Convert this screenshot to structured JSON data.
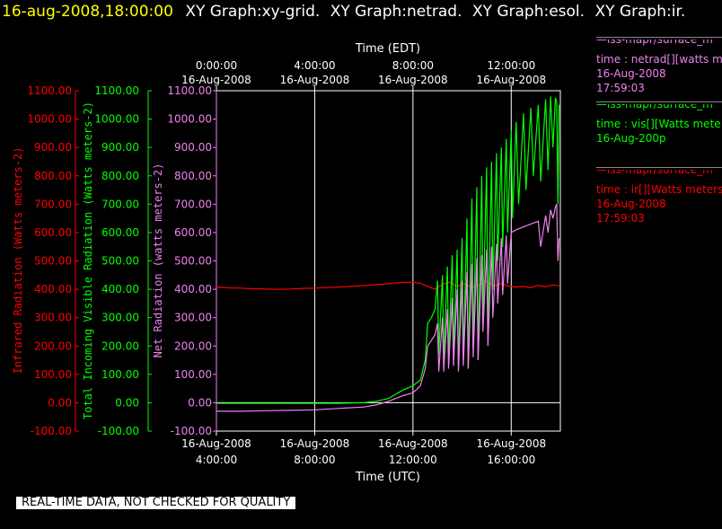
{
  "header": {
    "timestamp": "16-aug-2008,18:00:00",
    "tabs": [
      "XY Graph:xy-grid.",
      "XY Graph:netrad.",
      "XY Graph:esol.",
      "XY Graph:ir."
    ]
  },
  "footer": {
    "notice": "REAL-TIME DATA, NOT CHECKED FOR QUALITY"
  },
  "legend": [
    {
      "line1": "—iss-mapr/surface_m",
      "line2": "time : netrad[][watts m",
      "line3": "16-Aug-2008",
      "line4": "17:59:03",
      "color": "#ee82ee"
    },
    {
      "line1": "—iss-mapr/surface_m",
      "line2": "time : vis[][Watts mete",
      "line3": "16-Aug-200p",
      "line4": "",
      "color": "#00ff00"
    },
    {
      "line1": "—iss-mapr/surface_m",
      "line2": "time : ir[][Watts meters",
      "line3": "16-Aug-2008",
      "line4": "17:59:03",
      "color": "#ff0000"
    }
  ],
  "chart_data": {
    "type": "line",
    "x_unit": "hours UTC, 16-Aug-2008",
    "xlim": [
      4.0,
      18.0
    ],
    "ylim": [
      -100,
      1100
    ],
    "grid": true,
    "top_axis": {
      "label": "Time (EDT)",
      "ticks": [
        {
          "x": 4,
          "line1": "0:00:00",
          "line2": "16-Aug-2008"
        },
        {
          "x": 8,
          "line1": "4:00:00",
          "line2": "16-Aug-2008"
        },
        {
          "x": 12,
          "line1": "8:00:00",
          "line2": "16-Aug-2008"
        },
        {
          "x": 16,
          "line1": "12:00:00",
          "line2": "16-Aug-2008"
        }
      ]
    },
    "bottom_axis": {
      "label": "Time (UTC)",
      "ticks": [
        {
          "x": 4,
          "line1": "16-Aug-2008",
          "line2": "4:00:00"
        },
        {
          "x": 8,
          "line1": "16-Aug-2008",
          "line2": "8:00:00"
        },
        {
          "x": 12,
          "line1": "16-Aug-2008",
          "line2": "12:00:00"
        },
        {
          "x": 16,
          "line1": "16-Aug-2008",
          "line2": "16:00:00"
        }
      ]
    },
    "y_axes": [
      {
        "label": "Infrared Radiation (Watts meters-2)",
        "color": "#ff0000"
      },
      {
        "label": "Total Incoming Visible Radiation (Watts meters-2)",
        "color": "#00ff00"
      },
      {
        "label": "Net Radiation (watts meters-2)",
        "color": "#ee82ee"
      }
    ],
    "y_ticks": [
      "1100.00",
      "1000.00",
      "900.00",
      "800.00",
      "700.00",
      "600.00",
      "500.00",
      "400.00",
      "300.00",
      "200.00",
      "100.00",
      "0.00",
      "-100.00"
    ],
    "series": [
      {
        "name": "ir",
        "color": "#ff0000",
        "points": [
          [
            4,
            408
          ],
          [
            4.5,
            405
          ],
          [
            5,
            404
          ],
          [
            5.5,
            402
          ],
          [
            6,
            401
          ],
          [
            6.5,
            400
          ],
          [
            7,
            401
          ],
          [
            7.5,
            403
          ],
          [
            8,
            404
          ],
          [
            8.5,
            406
          ],
          [
            9,
            408
          ],
          [
            9.5,
            410
          ],
          [
            10,
            413
          ],
          [
            10.5,
            416
          ],
          [
            11,
            420
          ],
          [
            11.5,
            424
          ],
          [
            12,
            425
          ],
          [
            12.3,
            421
          ],
          [
            12.6,
            410
          ],
          [
            12.9,
            400
          ],
          [
            13.2,
            418
          ],
          [
            13.5,
            425
          ],
          [
            13.8,
            410
          ],
          [
            14.1,
            420
          ],
          [
            14.4,
            406
          ],
          [
            14.7,
            416
          ],
          [
            15,
            428
          ],
          [
            15.3,
            412
          ],
          [
            15.6,
            420
          ],
          [
            15.9,
            411
          ],
          [
            16.2,
            408
          ],
          [
            16.5,
            410
          ],
          [
            16.8,
            406
          ],
          [
            17.1,
            414
          ],
          [
            17.4,
            409
          ],
          [
            17.7,
            415
          ],
          [
            17.95,
            412
          ]
        ]
      },
      {
        "name": "vis",
        "color": "#00ff00",
        "points": [
          [
            4,
            -2
          ],
          [
            5,
            -2
          ],
          [
            6,
            -2
          ],
          [
            7,
            -2
          ],
          [
            8,
            -2
          ],
          [
            9,
            -2
          ],
          [
            10,
            0
          ],
          [
            10.5,
            5
          ],
          [
            11,
            15
          ],
          [
            11.3,
            30
          ],
          [
            11.6,
            45
          ],
          [
            12,
            60
          ],
          [
            12.3,
            80
          ],
          [
            12.5,
            150
          ],
          [
            12.6,
            280
          ],
          [
            12.75,
            300
          ],
          [
            12.9,
            330
          ],
          [
            13.0,
            430
          ],
          [
            13.05,
            170
          ],
          [
            13.2,
            450
          ],
          [
            13.25,
            150
          ],
          [
            13.4,
            480
          ],
          [
            13.45,
            160
          ],
          [
            13.6,
            520
          ],
          [
            13.65,
            180
          ],
          [
            13.8,
            540
          ],
          [
            13.85,
            130
          ],
          [
            14.0,
            580
          ],
          [
            14.05,
            150
          ],
          [
            14.2,
            650
          ],
          [
            14.25,
            120
          ],
          [
            14.4,
            720
          ],
          [
            14.45,
            200
          ],
          [
            14.6,
            760
          ],
          [
            14.65,
            150
          ],
          [
            14.8,
            800
          ],
          [
            14.85,
            300
          ],
          [
            15.0,
            830
          ],
          [
            15.05,
            250
          ],
          [
            15.2,
            850
          ],
          [
            15.25,
            400
          ],
          [
            15.4,
            880
          ],
          [
            15.45,
            500
          ],
          [
            15.6,
            900
          ],
          [
            15.65,
            550
          ],
          [
            15.8,
            930
          ],
          [
            15.85,
            600
          ],
          [
            16.0,
            960
          ],
          [
            16.05,
            650
          ],
          [
            16.2,
            990
          ],
          [
            16.3,
            700
          ],
          [
            16.5,
            1020
          ],
          [
            16.6,
            750
          ],
          [
            16.8,
            1040
          ],
          [
            16.9,
            800
          ],
          [
            17.1,
            1050
          ],
          [
            17.2,
            780
          ],
          [
            17.4,
            1070
          ],
          [
            17.5,
            820
          ],
          [
            17.6,
            1080
          ],
          [
            17.7,
            900
          ],
          [
            17.8,
            1075
          ],
          [
            17.85,
            1060
          ],
          [
            17.9,
            700
          ],
          [
            17.95,
            1050
          ]
        ]
      },
      {
        "name": "netrad",
        "color": "#ee82ee",
        "points": [
          [
            4,
            -30
          ],
          [
            5,
            -30
          ],
          [
            6,
            -28
          ],
          [
            7,
            -27
          ],
          [
            8,
            -25
          ],
          [
            9,
            -20
          ],
          [
            10,
            -15
          ],
          [
            10.5,
            -8
          ],
          [
            11,
            5
          ],
          [
            11.3,
            15
          ],
          [
            11.6,
            25
          ],
          [
            12,
            35
          ],
          [
            12.3,
            60
          ],
          [
            12.5,
            120
          ],
          [
            12.6,
            200
          ],
          [
            12.75,
            220
          ],
          [
            12.9,
            240
          ],
          [
            13.0,
            280
          ],
          [
            13.05,
            110
          ],
          [
            13.2,
            300
          ],
          [
            13.25,
            110
          ],
          [
            13.4,
            330
          ],
          [
            13.45,
            120
          ],
          [
            13.6,
            370
          ],
          [
            13.65,
            130
          ],
          [
            13.8,
            400
          ],
          [
            13.85,
            110
          ],
          [
            14.0,
            430
          ],
          [
            14.05,
            130
          ],
          [
            14.2,
            460
          ],
          [
            14.25,
            120
          ],
          [
            14.4,
            490
          ],
          [
            14.45,
            160
          ],
          [
            14.6,
            510
          ],
          [
            14.65,
            150
          ],
          [
            14.8,
            520
          ],
          [
            14.85,
            250
          ],
          [
            15.0,
            540
          ],
          [
            15.05,
            200
          ],
          [
            15.2,
            550
          ],
          [
            15.25,
            300
          ],
          [
            15.4,
            560
          ],
          [
            15.45,
            350
          ],
          [
            15.6,
            580
          ],
          [
            15.65,
            380
          ],
          [
            15.8,
            590
          ],
          [
            15.85,
            420
          ],
          [
            16.0,
            600
          ],
          [
            16.2,
            610
          ],
          [
            16.5,
            620
          ],
          [
            16.8,
            630
          ],
          [
            17.1,
            640
          ],
          [
            17.2,
            550
          ],
          [
            17.4,
            660
          ],
          [
            17.5,
            600
          ],
          [
            17.6,
            680
          ],
          [
            17.7,
            650
          ],
          [
            17.8,
            690
          ],
          [
            17.85,
            700
          ],
          [
            17.9,
            500
          ],
          [
            17.95,
            580
          ]
        ]
      }
    ]
  }
}
